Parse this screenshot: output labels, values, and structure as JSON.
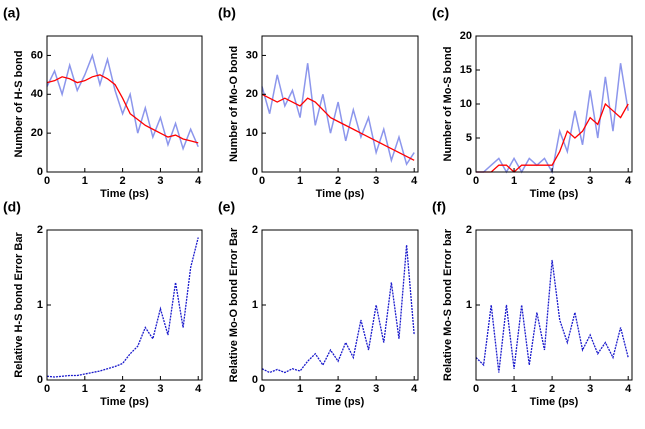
{
  "chart_data": [
    {
      "type": "line",
      "label": "(a)",
      "ylabel": "Number of H-S bond",
      "xlabel": "Time (ps)",
      "x": [
        0,
        0.2,
        0.4,
        0.6,
        0.8,
        1,
        1.2,
        1.4,
        1.6,
        1.8,
        2,
        2.2,
        2.4,
        2.6,
        2.8,
        3,
        3.2,
        3.4,
        3.6,
        3.8,
        4
      ],
      "series": [
        {
          "color": "#8c96ec",
          "values": [
            44,
            52,
            40,
            55,
            42,
            50,
            60,
            45,
            58,
            42,
            30,
            40,
            20,
            33,
            18,
            28,
            14,
            25,
            12,
            22,
            13
          ]
        },
        {
          "color": "#ff0000",
          "values": [
            46,
            47,
            49,
            48,
            46,
            47,
            49,
            50,
            48,
            45,
            38,
            30,
            27,
            24,
            22,
            20,
            18,
            19,
            17,
            16,
            15
          ]
        }
      ],
      "xlim": [
        0,
        4.1
      ],
      "ylim": [
        0,
        70
      ],
      "xticks": [
        0,
        1,
        2,
        3,
        4
      ],
      "yticks": [
        0,
        20,
        40,
        60
      ]
    },
    {
      "type": "line",
      "label": "(b)",
      "ylabel": "Number of Mo-O bond",
      "xlabel": "Time (ps)",
      "x": [
        0,
        0.2,
        0.4,
        0.6,
        0.8,
        1,
        1.2,
        1.4,
        1.6,
        1.8,
        2,
        2.2,
        2.4,
        2.6,
        2.8,
        3,
        3.2,
        3.4,
        3.6,
        3.8,
        4
      ],
      "series": [
        {
          "color": "#8c96ec",
          "values": [
            22,
            15,
            25,
            17,
            21,
            14,
            28,
            12,
            20,
            10,
            18,
            8,
            16,
            9,
            14,
            5,
            11,
            3,
            9,
            2,
            5
          ]
        },
        {
          "color": "#ff0000",
          "values": [
            20,
            19,
            18,
            19,
            18,
            17,
            19,
            18,
            16,
            14,
            13,
            12,
            11,
            10,
            9,
            8,
            7,
            6,
            5,
            4,
            3
          ]
        }
      ],
      "xlim": [
        0,
        4.1
      ],
      "ylim": [
        0,
        35
      ],
      "xticks": [
        0,
        1,
        2,
        3,
        4
      ],
      "yticks": [
        0,
        10,
        20,
        30
      ]
    },
    {
      "type": "line",
      "label": "(c)",
      "ylabel": "Number of Mo-S bond",
      "xlabel": "Time (ps)",
      "x": [
        0,
        0.2,
        0.4,
        0.6,
        0.8,
        1,
        1.2,
        1.4,
        1.6,
        1.8,
        2,
        2.2,
        2.4,
        2.6,
        2.8,
        3,
        3.2,
        3.4,
        3.6,
        3.8,
        4
      ],
      "series": [
        {
          "color": "#8c96ec",
          "values": [
            0,
            0,
            1,
            2,
            0,
            2,
            0,
            2,
            1,
            2,
            0,
            6,
            3,
            9,
            4,
            12,
            5,
            14,
            6,
            16,
            9
          ]
        },
        {
          "color": "#ff0000",
          "values": [
            0,
            0,
            0,
            1,
            1,
            0,
            1,
            1,
            1,
            1,
            1,
            3,
            6,
            5,
            6,
            8,
            7,
            10,
            9,
            8,
            10
          ]
        }
      ],
      "xlim": [
        0,
        4.1
      ],
      "ylim": [
        0,
        20
      ],
      "xticks": [
        0,
        1,
        2,
        3,
        4
      ],
      "yticks": [
        0,
        5,
        10,
        15,
        20
      ]
    },
    {
      "type": "line",
      "label": "(d)",
      "ylabel": "Relative H-S bond Error Bar",
      "xlabel": "Time (ps)",
      "line_style": "dotted",
      "x": [
        0,
        0.2,
        0.4,
        0.6,
        0.8,
        1,
        1.2,
        1.4,
        1.6,
        1.8,
        2,
        2.2,
        2.4,
        2.6,
        2.8,
        3,
        3.2,
        3.4,
        3.6,
        3.8,
        4
      ],
      "series": [
        {
          "color": "#1a1acc",
          "values": [
            0.05,
            0.04,
            0.05,
            0.06,
            0.06,
            0.08,
            0.1,
            0.12,
            0.15,
            0.18,
            0.22,
            0.35,
            0.45,
            0.7,
            0.55,
            0.95,
            0.6,
            1.3,
            0.7,
            1.5,
            1.9
          ]
        }
      ],
      "xlim": [
        0,
        4.1
      ],
      "ylim": [
        0,
        2
      ],
      "xticks": [
        0,
        1,
        2,
        3,
        4
      ],
      "yticks": [
        0,
        1,
        2
      ]
    },
    {
      "type": "line",
      "label": "(e)",
      "ylabel": "Relative Mo-O bond Error Bar",
      "xlabel": "Time (ps)",
      "line_style": "dotted",
      "x": [
        0,
        0.2,
        0.4,
        0.6,
        0.8,
        1,
        1.2,
        1.4,
        1.6,
        1.8,
        2,
        2.2,
        2.4,
        2.6,
        2.8,
        3,
        3.2,
        3.4,
        3.6,
        3.8,
        4
      ],
      "series": [
        {
          "color": "#1a1acc",
          "values": [
            0.15,
            0.1,
            0.14,
            0.1,
            0.15,
            0.12,
            0.25,
            0.35,
            0.2,
            0.4,
            0.25,
            0.5,
            0.3,
            0.8,
            0.4,
            1.0,
            0.5,
            1.3,
            0.55,
            1.8,
            0.6
          ]
        }
      ],
      "xlim": [
        0,
        4.1
      ],
      "ylim": [
        0,
        2
      ],
      "xticks": [
        0,
        1,
        2,
        3,
        4
      ],
      "yticks": [
        0,
        1,
        2
      ]
    },
    {
      "type": "line",
      "label": "(f)",
      "ylabel": "Relative Mo-S bond Error bar",
      "xlabel": "Time (ps)",
      "line_style": "dotted",
      "x": [
        0,
        0.2,
        0.4,
        0.6,
        0.8,
        1,
        1.2,
        1.4,
        1.6,
        1.8,
        2,
        2.2,
        2.4,
        2.6,
        2.8,
        3,
        3.2,
        3.4,
        3.6,
        3.8,
        4
      ],
      "series": [
        {
          "color": "#1a1acc",
          "values": [
            0.3,
            0.2,
            1.0,
            0.1,
            1.0,
            0.15,
            1.0,
            0.2,
            0.9,
            0.4,
            1.6,
            0.8,
            0.5,
            0.9,
            0.4,
            0.6,
            0.35,
            0.5,
            0.3,
            0.7,
            0.3
          ]
        }
      ],
      "xlim": [
        0,
        4.1
      ],
      "ylim": [
        0,
        2
      ],
      "xticks": [
        0,
        1,
        2,
        3,
        4
      ],
      "yticks": [
        1,
        2
      ]
    }
  ]
}
